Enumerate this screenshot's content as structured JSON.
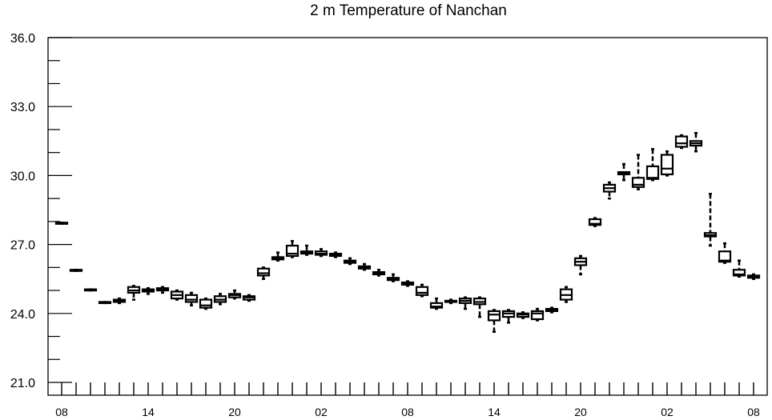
{
  "chart_data": {
    "type": "box",
    "title": "2 m Temperature of Nanchan",
    "xlabel": "",
    "ylabel": "",
    "ylim": [
      21.0,
      36.0
    ],
    "y_ticks": [
      "21.0",
      "24.0",
      "27.0",
      "30.0",
      "33.0",
      "36.0"
    ],
    "x_tick_labels": [
      "08",
      "14",
      "20",
      "02",
      "08",
      "14",
      "20",
      "02",
      "08"
    ],
    "x_hours": [
      0,
      6,
      12,
      18,
      24,
      30,
      36,
      42,
      48
    ],
    "grid": false,
    "boxes": [
      {
        "hour": 0,
        "min": 27.9,
        "q1": 27.9,
        "median": 27.92,
        "q3": 27.95,
        "max": 27.95
      },
      {
        "hour": 1,
        "min": 25.85,
        "q1": 25.85,
        "median": 25.87,
        "q3": 25.9,
        "max": 25.9
      },
      {
        "hour": 2,
        "min": 25.0,
        "q1": 25.0,
        "median": 25.02,
        "q3": 25.05,
        "max": 25.05
      },
      {
        "hour": 3,
        "min": 24.45,
        "q1": 24.45,
        "median": 24.47,
        "q3": 24.5,
        "max": 24.5
      },
      {
        "hour": 4,
        "min": 24.45,
        "q1": 24.5,
        "median": 24.55,
        "q3": 24.6,
        "max": 24.65
      },
      {
        "hour": 5,
        "min": 24.6,
        "q1": 24.9,
        "median": 25.0,
        "q3": 25.15,
        "max": 25.2
      },
      {
        "hour": 6,
        "min": 24.85,
        "q1": 24.95,
        "median": 25.0,
        "q3": 25.05,
        "max": 25.1
      },
      {
        "hour": 7,
        "min": 24.9,
        "q1": 25.0,
        "median": 25.05,
        "q3": 25.1,
        "max": 25.15
      },
      {
        "hour": 8,
        "min": 24.6,
        "q1": 24.65,
        "median": 24.8,
        "q3": 24.95,
        "max": 25.0
      },
      {
        "hour": 9,
        "min": 24.35,
        "q1": 24.5,
        "median": 24.6,
        "q3": 24.8,
        "max": 24.9
      },
      {
        "hour": 10,
        "min": 24.2,
        "q1": 24.25,
        "median": 24.35,
        "q3": 24.6,
        "max": 24.65
      },
      {
        "hour": 11,
        "min": 24.4,
        "q1": 24.5,
        "median": 24.6,
        "q3": 24.75,
        "max": 24.85
      },
      {
        "hour": 12,
        "min": 24.65,
        "q1": 24.7,
        "median": 24.8,
        "q3": 24.85,
        "max": 25.0
      },
      {
        "hour": 13,
        "min": 24.55,
        "q1": 24.6,
        "median": 24.7,
        "q3": 24.75,
        "max": 24.8
      },
      {
        "hour": 14,
        "min": 25.5,
        "q1": 25.65,
        "median": 25.75,
        "q3": 25.95,
        "max": 26.0
      },
      {
        "hour": 15,
        "min": 26.3,
        "q1": 26.35,
        "median": 26.4,
        "q3": 26.45,
        "max": 26.65
      },
      {
        "hour": 16,
        "min": 26.45,
        "q1": 26.5,
        "median": 26.6,
        "q3": 26.95,
        "max": 27.15
      },
      {
        "hour": 17,
        "min": 26.55,
        "q1": 26.6,
        "median": 26.65,
        "q3": 26.7,
        "max": 26.95
      },
      {
        "hour": 18,
        "min": 26.5,
        "q1": 26.55,
        "median": 26.6,
        "q3": 26.7,
        "max": 26.8
      },
      {
        "hour": 19,
        "min": 26.45,
        "q1": 26.5,
        "median": 26.55,
        "q3": 26.6,
        "max": 26.65
      },
      {
        "hour": 20,
        "min": 26.15,
        "q1": 26.2,
        "median": 26.25,
        "q3": 26.3,
        "max": 26.4
      },
      {
        "hour": 21,
        "min": 25.9,
        "q1": 25.95,
        "median": 26.0,
        "q3": 26.05,
        "max": 26.15
      },
      {
        "hour": 22,
        "min": 25.65,
        "q1": 25.7,
        "median": 25.75,
        "q3": 25.8,
        "max": 25.9
      },
      {
        "hour": 23,
        "min": 25.4,
        "q1": 25.45,
        "median": 25.5,
        "q3": 25.55,
        "max": 25.7
      },
      {
        "hour": 24,
        "min": 25.2,
        "q1": 25.25,
        "median": 25.3,
        "q3": 25.35,
        "max": 25.4
      },
      {
        "hour": 25,
        "min": 24.75,
        "q1": 24.8,
        "median": 24.9,
        "q3": 25.15,
        "max": 25.25
      },
      {
        "hour": 26,
        "min": 24.2,
        "q1": 24.25,
        "median": 24.3,
        "q3": 24.45,
        "max": 24.65
      },
      {
        "hour": 27,
        "min": 24.45,
        "q1": 24.5,
        "median": 24.55,
        "q3": 24.55,
        "max": 24.6
      },
      {
        "hour": 28,
        "min": 24.2,
        "q1": 24.45,
        "median": 24.55,
        "q3": 24.65,
        "max": 24.7
      },
      {
        "hour": 29,
        "min": 23.85,
        "q1": 24.4,
        "median": 24.5,
        "q3": 24.65,
        "max": 24.7
      },
      {
        "hour": 30,
        "min": 23.2,
        "q1": 23.7,
        "median": 23.95,
        "q3": 24.1,
        "max": 24.15
      },
      {
        "hour": 31,
        "min": 23.6,
        "q1": 23.85,
        "median": 24.0,
        "q3": 24.1,
        "max": 24.15
      },
      {
        "hour": 32,
        "min": 23.8,
        "q1": 23.85,
        "median": 23.95,
        "q3": 24.0,
        "max": 24.05
      },
      {
        "hour": 33,
        "min": 23.7,
        "q1": 23.75,
        "median": 24.0,
        "q3": 24.1,
        "max": 24.2
      },
      {
        "hour": 34,
        "min": 24.05,
        "q1": 24.1,
        "median": 24.15,
        "q3": 24.2,
        "max": 24.25
      },
      {
        "hour": 35,
        "min": 24.5,
        "q1": 24.6,
        "median": 24.8,
        "q3": 25.05,
        "max": 25.15
      },
      {
        "hour": 36,
        "min": 25.7,
        "q1": 26.1,
        "median": 26.25,
        "q3": 26.4,
        "max": 26.5
      },
      {
        "hour": 37,
        "min": 27.8,
        "q1": 27.85,
        "median": 27.9,
        "q3": 28.1,
        "max": 28.15
      },
      {
        "hour": 38,
        "min": 29.0,
        "q1": 29.3,
        "median": 29.45,
        "q3": 29.6,
        "max": 29.7
      },
      {
        "hour": 39,
        "min": 29.8,
        "q1": 30.05,
        "median": 30.1,
        "q3": 30.15,
        "max": 30.5
      },
      {
        "hour": 40,
        "min": 29.4,
        "q1": 29.5,
        "median": 29.6,
        "q3": 29.9,
        "max": 30.9
      },
      {
        "hour": 41,
        "min": 29.8,
        "q1": 29.85,
        "median": 29.9,
        "q3": 30.4,
        "max": 31.15
      },
      {
        "hour": 42,
        "min": 30.0,
        "q1": 30.05,
        "median": 30.3,
        "q3": 30.9,
        "max": 31.05
      },
      {
        "hour": 43,
        "min": 31.2,
        "q1": 31.25,
        "median": 31.4,
        "q3": 31.7,
        "max": 31.75
      },
      {
        "hour": 44,
        "min": 31.05,
        "q1": 31.3,
        "median": 31.4,
        "q3": 31.5,
        "max": 31.85
      },
      {
        "hour": 45,
        "min": 26.95,
        "q1": 27.35,
        "median": 27.4,
        "q3": 27.5,
        "max": 29.2
      },
      {
        "hour": 46,
        "min": 26.2,
        "q1": 26.25,
        "median": 26.3,
        "q3": 26.7,
        "max": 27.05
      },
      {
        "hour": 47,
        "min": 25.6,
        "q1": 25.65,
        "median": 25.7,
        "q3": 25.9,
        "max": 26.3
      },
      {
        "hour": 48,
        "min": 25.5,
        "q1": 25.55,
        "median": 25.6,
        "q3": 25.65,
        "max": 25.7
      }
    ]
  }
}
